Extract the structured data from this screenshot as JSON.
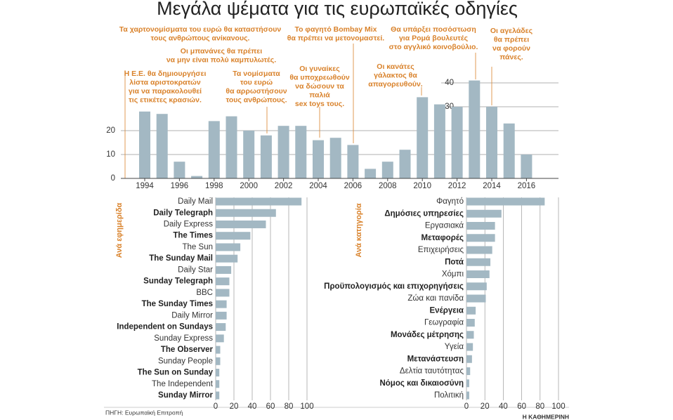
{
  "title": "Μεγάλα ψέματα για τις ευρωπαϊκές οδηγίες",
  "source": "ΠΗΓΗ: Ευρωπαϊκή Επιτροπή",
  "credit": "Η ΚΑΘΗΜΕΡΙΝΗ",
  "chart_data": [
    {
      "type": "bar",
      "color": "#a3b8c3",
      "x": [
        1994,
        1995,
        1996,
        1997,
        1998,
        1999,
        2000,
        2001,
        2002,
        2003,
        2004,
        2005,
        2006,
        2007,
        2008,
        2009,
        2010,
        2011,
        2012,
        2013,
        2014,
        2015,
        2016
      ],
      "values": [
        28,
        27,
        7,
        1,
        24,
        26,
        20,
        18,
        22,
        22,
        16,
        17,
        14,
        4,
        7,
        12,
        34,
        31,
        30,
        41,
        30,
        23,
        10
      ],
      "xlim": [
        1993,
        2017
      ],
      "xticks": [
        1994,
        1996,
        1998,
        2000,
        2002,
        2004,
        2006,
        2008,
        2010,
        2012,
        2014,
        2016
      ],
      "ylim": [
        0,
        45
      ],
      "yticks": [
        0,
        10,
        20,
        30,
        40
      ],
      "grid": true,
      "annotations": [
        [
          "Η Ε.Ε. θα δημιουργήσει",
          "λίστα αριστοκρατών",
          "για να παρακολουθεί",
          "τις ετικέτες κρασιών."
        ],
        [
          "Τα χαρτονομίσματα του ευρώ θα καταστήσουν",
          "τους ανθρώπους ανίκανους."
        ],
        [
          "Οι μπανάνες θα πρέπει",
          "να μην είναι πολύ καμπυλωτές."
        ],
        [
          "Τα νομίσματα",
          "του ευρώ",
          "θα αρρωστήσουν",
          "τους ανθρώπους."
        ],
        [
          "Οι γυναίκες",
          "θα υποχρεωθούν",
          "να δώσουν τα",
          "παλιά",
          "sex toys τους."
        ],
        [
          "Το φαγητό Bombay Mix",
          "θα πρέπει να μετονομαστεί."
        ],
        [
          "Οι κανάτες",
          "γάλακτος θα",
          "απαγορευθούν."
        ],
        [
          "Θα υπάρξει ποσόστωση",
          "για Ρομά βουλευτές",
          "στο αγγλικό κοινοβούλιο."
        ],
        [
          "Οι αγελάδες",
          "θα πρέπει",
          "να φορούν",
          "πάνες."
        ]
      ]
    },
    {
      "type": "hbar",
      "title": "Ανά εφημερίδα",
      "color": "#a3b8c3",
      "categories": [
        "Daily Mail",
        "Daily Telegraph",
        "Daily Express",
        "The Times",
        "The Sun",
        "The Sunday Mail",
        "Daily Star",
        "Sunday Telegraph",
        "BBC",
        "The Sunday Times",
        "Daily Mirror",
        "Independent on Sundays",
        "Sunday Express",
        "The Observer",
        "Sunday People",
        "The Sun on Sunday",
        "The Independent",
        "Sunday Mirror"
      ],
      "values": [
        94,
        66,
        55,
        38,
        27,
        24,
        17,
        15,
        15,
        12,
        12,
        11,
        9,
        5,
        5,
        4,
        4,
        4
      ],
      "xlim": [
        0,
        100
      ],
      "xticks": [
        0,
        20,
        40,
        60,
        80,
        100
      ],
      "grid": true
    },
    {
      "type": "hbar",
      "title": "Ανά κατηγορία",
      "color": "#a3b8c3",
      "categories": [
        "Φαγητό",
        "Δημόσιες υπηρεσίες",
        "Εργασιακά",
        "Μεταφορές",
        "Επιχειρήσεις",
        "Ποτά",
        "Χόμπι",
        "Προϋπολογισμός και επιχορηγήσεις",
        "Ζώα και πανίδα",
        "Ενέργεια",
        "Γεωγραφία",
        "Μονάδες μέτρησης",
        "Υγεία",
        "Μετανάστευση",
        "Δελτία ταυτότητας",
        "Νόμος και δικαιοσύνη",
        "Πολιτική"
      ],
      "values": [
        85,
        38,
        31,
        31,
        28,
        26,
        25,
        22,
        21,
        10,
        9,
        8,
        7,
        6,
        4,
        3,
        3
      ],
      "xlim": [
        0,
        100
      ],
      "xticks": [
        0,
        20,
        40,
        60,
        80,
        100
      ],
      "grid": true
    }
  ]
}
